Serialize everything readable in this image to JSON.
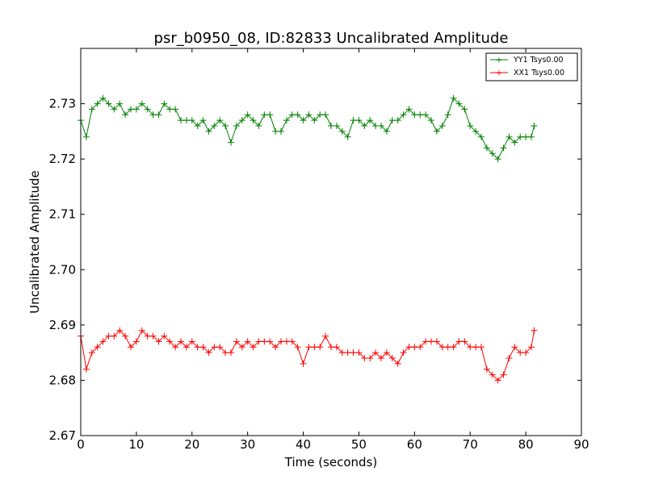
{
  "chart_data": {
    "type": "line",
    "title": "psr_b0950_08, ID:82833 Uncalibrated Amplitude",
    "xlabel": "Time (seconds)",
    "ylabel": "Uncalibrated Amplitude",
    "xlim": [
      0,
      90
    ],
    "ylim": [
      2.67,
      2.74
    ],
    "xticks": [
      "0",
      "10",
      "20",
      "30",
      "40",
      "50",
      "60",
      "70",
      "80",
      "90"
    ],
    "yticks": [
      "2.67",
      "2.68",
      "2.69",
      "2.70",
      "2.71",
      "2.72",
      "2.73"
    ],
    "marker": "+",
    "grid": false,
    "legend_position": "top-right",
    "series": [
      {
        "name": "YY1 Tsys0.00",
        "color": "#008000",
        "x": [
          0,
          1,
          2,
          3,
          4,
          5,
          6,
          7,
          8,
          9,
          10,
          11,
          12,
          13,
          14,
          15,
          16,
          17,
          18,
          19,
          20,
          21,
          22,
          23,
          24,
          25,
          26,
          27,
          28,
          29,
          30,
          31,
          32,
          33,
          34,
          35,
          36,
          37,
          38,
          39,
          40,
          41,
          42,
          43,
          44,
          45,
          46,
          47,
          48,
          49,
          50,
          51,
          52,
          53,
          54,
          55,
          56,
          57,
          58,
          59,
          60,
          61,
          62,
          63,
          64,
          65,
          66,
          67,
          68,
          69,
          70,
          71,
          72,
          73,
          74,
          75,
          76,
          77,
          78,
          79,
          80,
          81,
          81.5
        ],
        "y": [
          2.727,
          2.724,
          2.729,
          2.73,
          2.731,
          2.73,
          2.729,
          2.73,
          2.728,
          2.729,
          2.729,
          2.73,
          2.729,
          2.728,
          2.728,
          2.73,
          2.729,
          2.729,
          2.727,
          2.727,
          2.727,
          2.726,
          2.727,
          2.725,
          2.726,
          2.727,
          2.726,
          2.723,
          2.726,
          2.727,
          2.728,
          2.727,
          2.726,
          2.728,
          2.728,
          2.725,
          2.725,
          2.727,
          2.728,
          2.728,
          2.727,
          2.728,
          2.727,
          2.728,
          2.728,
          2.726,
          2.726,
          2.725,
          2.724,
          2.727,
          2.727,
          2.726,
          2.727,
          2.726,
          2.726,
          2.725,
          2.727,
          2.727,
          2.728,
          2.729,
          2.728,
          2.728,
          2.728,
          2.727,
          2.725,
          2.726,
          2.728,
          2.731,
          2.73,
          2.729,
          2.726,
          2.725,
          2.724,
          2.722,
          2.721,
          2.72,
          2.722,
          2.724,
          2.723,
          2.724,
          2.724,
          2.724,
          2.726
        ]
      },
      {
        "name": "XX1 Tsys0.00",
        "color": "#ff0000",
        "x": [
          0,
          1,
          2,
          3,
          4,
          5,
          6,
          7,
          8,
          9,
          10,
          11,
          12,
          13,
          14,
          15,
          16,
          17,
          18,
          19,
          20,
          21,
          22,
          23,
          24,
          25,
          26,
          27,
          28,
          29,
          30,
          31,
          32,
          33,
          34,
          35,
          36,
          37,
          38,
          39,
          40,
          41,
          42,
          43,
          44,
          45,
          46,
          47,
          48,
          49,
          50,
          51,
          52,
          53,
          54,
          55,
          56,
          57,
          58,
          59,
          60,
          61,
          62,
          63,
          64,
          65,
          66,
          67,
          68,
          69,
          70,
          71,
          72,
          73,
          74,
          75,
          76,
          77,
          78,
          79,
          80,
          81,
          81.5
        ],
        "y": [
          2.688,
          2.682,
          2.685,
          2.686,
          2.687,
          2.688,
          2.688,
          2.689,
          2.688,
          2.686,
          2.687,
          2.689,
          2.688,
          2.688,
          2.687,
          2.688,
          2.687,
          2.686,
          2.687,
          2.686,
          2.687,
          2.686,
          2.686,
          2.685,
          2.686,
          2.686,
          2.685,
          2.685,
          2.687,
          2.686,
          2.687,
          2.686,
          2.687,
          2.687,
          2.687,
          2.686,
          2.687,
          2.687,
          2.687,
          2.686,
          2.683,
          2.686,
          2.686,
          2.686,
          2.688,
          2.686,
          2.686,
          2.685,
          2.685,
          2.685,
          2.685,
          2.684,
          2.684,
          2.685,
          2.684,
          2.685,
          2.684,
          2.683,
          2.685,
          2.686,
          2.686,
          2.686,
          2.687,
          2.687,
          2.687,
          2.686,
          2.686,
          2.686,
          2.687,
          2.687,
          2.686,
          2.686,
          2.686,
          2.682,
          2.681,
          2.68,
          2.681,
          2.684,
          2.686,
          2.685,
          2.685,
          2.686,
          2.689
        ]
      }
    ]
  }
}
